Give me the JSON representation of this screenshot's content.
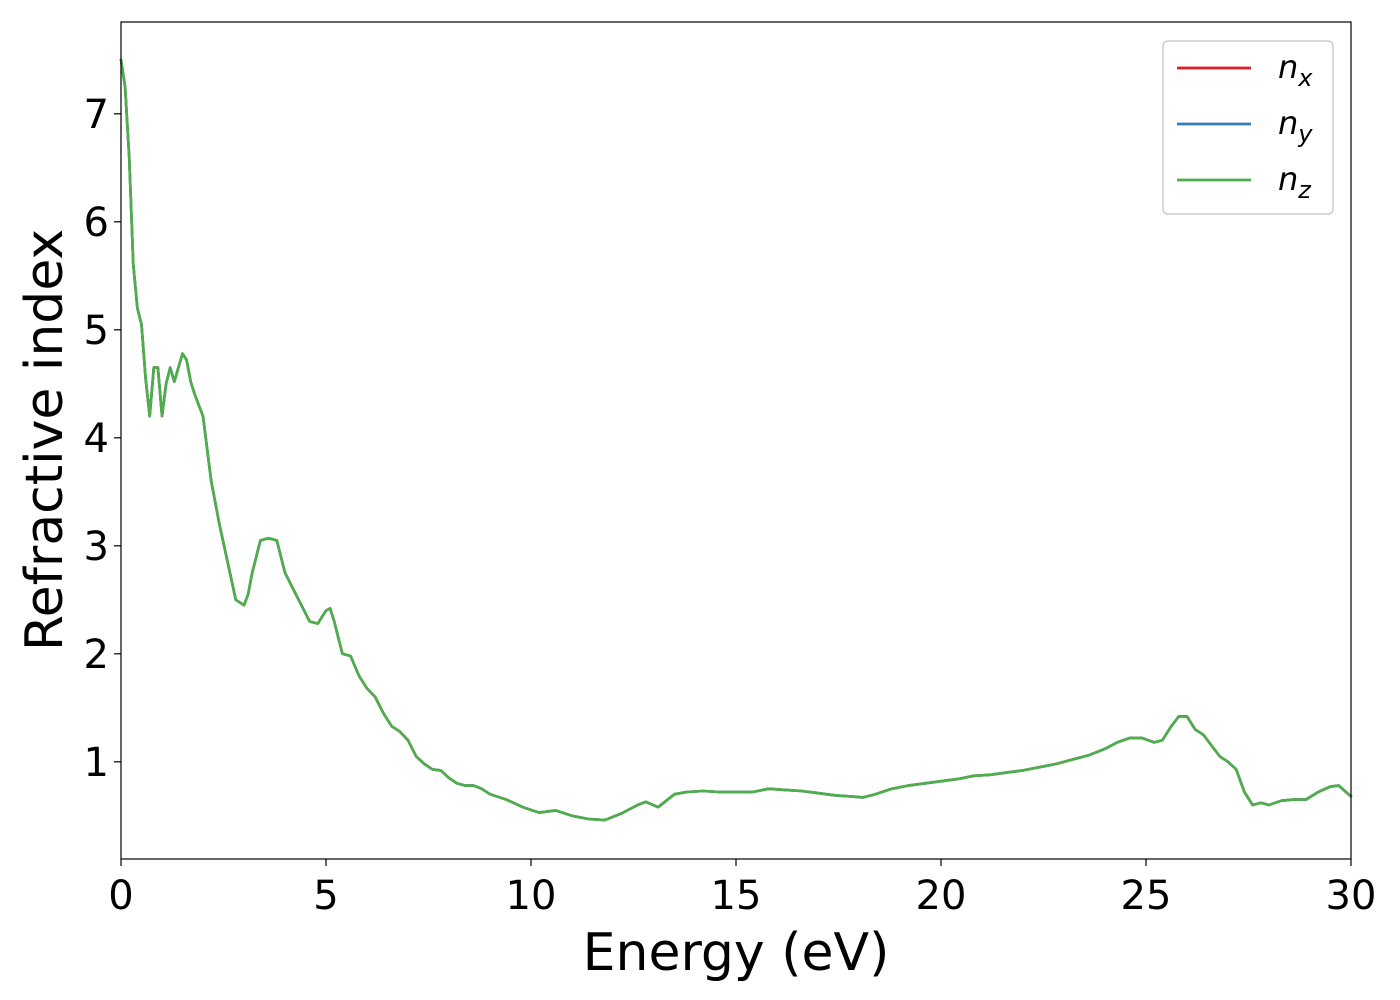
{
  "chart_data": {
    "type": "line",
    "xlabel": "Energy (eV)",
    "ylabel": "Refractive index",
    "xlim": [
      0,
      30
    ],
    "ylim": [
      0.1,
      7.85
    ],
    "xticks": [
      "0",
      "5",
      "10",
      "15",
      "20",
      "25",
      "30"
    ],
    "yticks": [
      "1",
      "2",
      "3",
      "4",
      "5",
      "6",
      "7"
    ],
    "grid": false,
    "legend_position": "top-right",
    "series": [
      {
        "name": "n",
        "sub": "x",
        "color": "#e41a1c"
      },
      {
        "name": "n",
        "sub": "y",
        "color": "#377eb8"
      },
      {
        "name": "n",
        "sub": "z",
        "color": "#4daf4a"
      }
    ],
    "x": [
      0,
      0.1,
      0.2,
      0.3,
      0.4,
      0.5,
      0.6,
      0.7,
      0.8,
      0.9,
      1.0,
      1.1,
      1.2,
      1.3,
      1.4,
      1.5,
      1.6,
      1.7,
      1.8,
      1.9,
      2.0,
      2.2,
      2.4,
      2.6,
      2.8,
      3.0,
      3.1,
      3.2,
      3.4,
      3.6,
      3.8,
      4.0,
      4.2,
      4.4,
      4.6,
      4.8,
      5.0,
      5.1,
      5.2,
      5.4,
      5.6,
      5.8,
      6.0,
      6.2,
      6.4,
      6.6,
      6.8,
      7.0,
      7.2,
      7.4,
      7.6,
      7.8,
      8.0,
      8.2,
      8.4,
      8.6,
      8.8,
      9.0,
      9.4,
      9.8,
      10.2,
      10.6,
      11.0,
      11.4,
      11.8,
      12.2,
      12.6,
      12.8,
      13.1,
      13.5,
      13.8,
      14.2,
      14.6,
      15.0,
      15.4,
      15.8,
      16.2,
      16.6,
      17.0,
      17.4,
      17.8,
      18.1,
      18.4,
      18.8,
      19.2,
      19.6,
      20.0,
      20.4,
      20.8,
      21.2,
      21.6,
      22.0,
      22.4,
      22.8,
      23.2,
      23.6,
      24.0,
      24.3,
      24.6,
      24.9,
      25.2,
      25.4,
      25.6,
      25.8,
      26.0,
      26.2,
      26.4,
      26.6,
      26.8,
      27.0,
      27.2,
      27.4,
      27.6,
      27.8,
      28.0,
      28.3,
      28.6,
      28.9,
      29.2,
      29.5,
      29.7,
      30.0
    ],
    "values": [
      7.5,
      7.25,
      6.6,
      5.6,
      5.2,
      5.05,
      4.55,
      4.2,
      4.65,
      4.65,
      4.2,
      4.5,
      4.65,
      4.52,
      4.65,
      4.78,
      4.72,
      4.52,
      4.4,
      4.3,
      4.2,
      3.6,
      3.2,
      2.85,
      2.5,
      2.45,
      2.55,
      2.75,
      3.05,
      3.07,
      3.05,
      2.75,
      2.6,
      2.45,
      2.3,
      2.28,
      2.4,
      2.42,
      2.3,
      2.0,
      1.98,
      1.8,
      1.68,
      1.6,
      1.45,
      1.33,
      1.28,
      1.2,
      1.05,
      0.98,
      0.93,
      0.92,
      0.85,
      0.8,
      0.78,
      0.78,
      0.75,
      0.7,
      0.65,
      0.58,
      0.53,
      0.55,
      0.5,
      0.47,
      0.46,
      0.52,
      0.6,
      0.63,
      0.58,
      0.7,
      0.72,
      0.73,
      0.72,
      0.72,
      0.72,
      0.75,
      0.74,
      0.73,
      0.71,
      0.69,
      0.68,
      0.67,
      0.7,
      0.75,
      0.78,
      0.8,
      0.82,
      0.84,
      0.87,
      0.88,
      0.9,
      0.92,
      0.95,
      0.98,
      1.02,
      1.06,
      1.12,
      1.18,
      1.22,
      1.22,
      1.18,
      1.2,
      1.32,
      1.42,
      1.42,
      1.3,
      1.25,
      1.15,
      1.05,
      1.0,
      0.93,
      0.72,
      0.6,
      0.62,
      0.6,
      0.64,
      0.65,
      0.65,
      0.72,
      0.77,
      0.78,
      0.68
    ]
  }
}
